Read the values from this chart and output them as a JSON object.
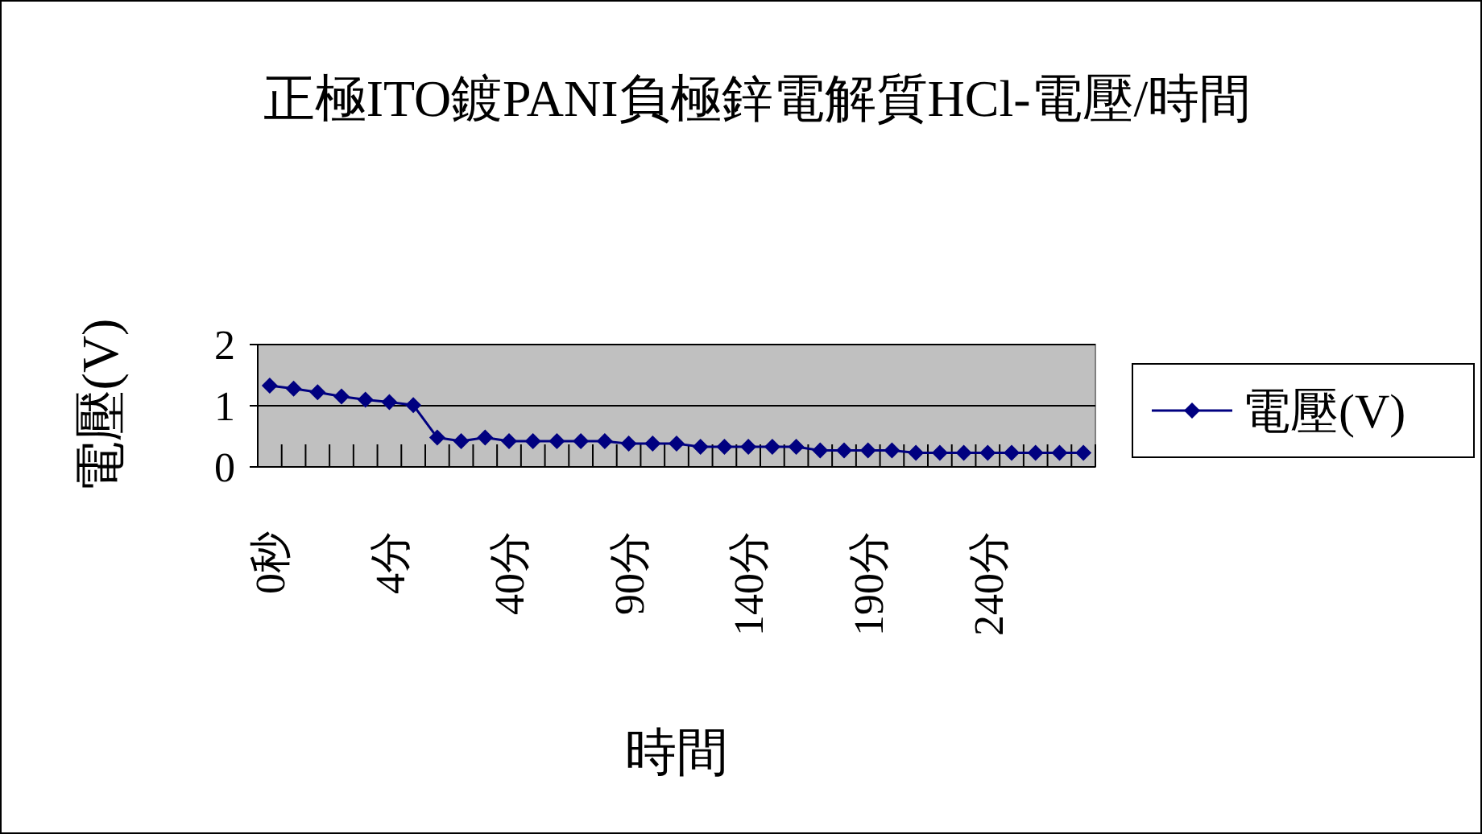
{
  "chart_data": {
    "type": "line",
    "title": "正極ITO鍍PANI負極鋅電解質HCl-電壓/時間",
    "xlabel": "時間",
    "ylabel": "電壓(V)",
    "categories": [
      "0秒",
      null,
      null,
      null,
      null,
      "4分",
      null,
      null,
      null,
      null,
      "40分",
      null,
      null,
      null,
      null,
      "90分",
      null,
      null,
      null,
      null,
      "140分",
      null,
      null,
      null,
      null,
      "190分",
      null,
      null,
      null,
      null,
      "240分",
      null,
      null,
      null,
      null
    ],
    "series": [
      {
        "name": "電壓(V)",
        "color": "#000080",
        "values": [
          1.33,
          1.28,
          1.22,
          1.15,
          1.1,
          1.06,
          1.01,
          0.48,
          0.42,
          0.48,
          0.42,
          0.42,
          0.42,
          0.42,
          0.42,
          0.38,
          0.38,
          0.38,
          0.33,
          0.33,
          0.33,
          0.33,
          0.33,
          0.27,
          0.27,
          0.27,
          0.27,
          0.23,
          0.23,
          0.23,
          0.23,
          0.23,
          0.23,
          0.23,
          0.23
        ]
      }
    ],
    "ylim": [
      0,
      2
    ],
    "yticks": [
      0,
      1,
      2
    ],
    "grid": "y",
    "legend": "right",
    "marker": "diamond",
    "line_style": "solid"
  }
}
